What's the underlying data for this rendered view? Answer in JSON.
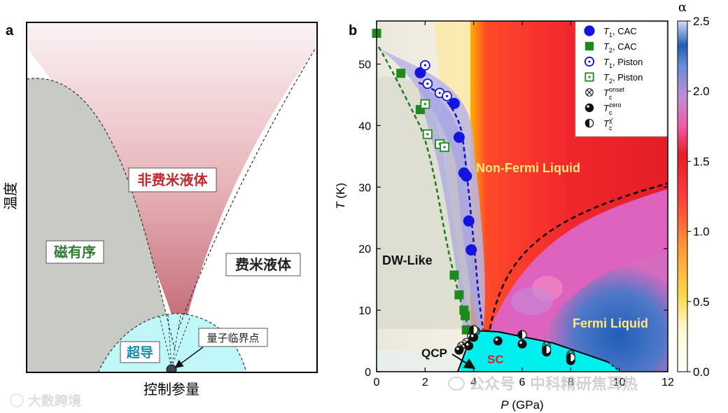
{
  "panel_a": {
    "label": "a",
    "ylabel": "温度",
    "xlabel": "控制参量",
    "regions": {
      "non_fermi": "非费米液体",
      "magnetic": "磁有序",
      "fermi": "费米液体",
      "superconducting": "超导",
      "qcp": "量子临界点"
    }
  },
  "chart_data": {
    "type": "scatter",
    "panel_label": "b",
    "xlabel": "P (GPa)",
    "xlabel_italic": "P",
    "xlabel_unit": " (GPa)",
    "ylabel": "T (K)",
    "ylabel_italic": "T",
    "ylabel_unit": " (K)",
    "xlim": [
      0,
      12
    ],
    "ylim": [
      0,
      57
    ],
    "xticks": [
      "0",
      "2",
      "4",
      "6",
      "8",
      "10",
      "12"
    ],
    "yticks": [
      "0",
      "10",
      "20",
      "30",
      "40",
      "50"
    ],
    "colorbar": {
      "label": "α",
      "range": [
        0,
        2.5
      ],
      "ticks": [
        "0.0",
        "0.5",
        "1.0",
        "1.5",
        "2.0",
        "2.5"
      ]
    },
    "region_labels": {
      "non_fermi": "Non-Fermi Liquid",
      "fermi": "Fermi Liquid",
      "dw": "DW-Like",
      "sc": "SC",
      "qcp": "QCP"
    },
    "legend": [
      {
        "sym": "T",
        "sub": "1",
        "text": ", CAC"
      },
      {
        "sym": "T",
        "sub": "2",
        "text": ", CAC"
      },
      {
        "sym": "T",
        "sub": "1",
        "text": ", Piston"
      },
      {
        "sym": "T",
        "sub": "2",
        "text": ", Piston"
      },
      {
        "sym": "T",
        "sub": "c",
        "sup": "onset"
      },
      {
        "sym": "T",
        "sub": "c",
        "sup": "zero"
      },
      {
        "sym": "T",
        "sub": "c",
        "sup": "χ'"
      }
    ],
    "series": [
      {
        "name": "T1, CAC",
        "points": [
          [
            1.8,
            48.6
          ],
          [
            3.2,
            43.6
          ],
          [
            3.4,
            38.1
          ],
          [
            3.6,
            32.3
          ],
          [
            3.7,
            31.8
          ],
          [
            3.8,
            24.5
          ],
          [
            3.9,
            19.8
          ]
        ]
      },
      {
        "name": "T2, CAC",
        "points": [
          [
            0.0,
            55.0
          ],
          [
            1.0,
            48.5
          ],
          [
            1.8,
            42.6
          ],
          [
            3.2,
            15.7
          ],
          [
            3.4,
            12.5
          ],
          [
            3.6,
            10.0
          ],
          [
            3.65,
            9.1
          ],
          [
            3.7,
            6.8
          ]
        ]
      },
      {
        "name": "T1, Piston",
        "points": [
          [
            2.0,
            49.8
          ],
          [
            2.1,
            46.8
          ],
          [
            2.6,
            45.3
          ],
          [
            2.9,
            44.8
          ]
        ]
      },
      {
        "name": "T2, Piston",
        "points": [
          [
            2.0,
            43.5
          ],
          [
            2.1,
            38.6
          ],
          [
            2.6,
            37.0
          ],
          [
            2.8,
            36.5
          ]
        ]
      },
      {
        "name": "Tc onset",
        "points": [
          [
            3.5,
            4.2
          ],
          [
            3.7,
            4.8
          ],
          [
            3.9,
            5.9
          ],
          [
            4.1,
            6.6
          ],
          [
            6.0,
            6.0
          ],
          [
            7.0,
            4.2
          ],
          [
            8.0,
            2.8
          ]
        ]
      },
      {
        "name": "Tc zero",
        "points": [
          [
            3.4,
            3.5
          ],
          [
            3.8,
            4.2
          ],
          [
            4.0,
            5.6
          ],
          [
            5.0,
            5.0
          ],
          [
            6.0,
            4.5
          ],
          [
            7.0,
            3.2
          ],
          [
            8.0,
            1.8
          ]
        ]
      },
      {
        "name": "Tc chi",
        "points": [
          [
            4.0,
            6.8
          ],
          [
            6.0,
            6.0
          ],
          [
            7.0,
            3.6
          ],
          [
            8.0,
            2.3
          ]
        ]
      }
    ]
  },
  "watermarks": {
    "left": "大数跨境",
    "right": "公众号 · 中科精研焦耳热"
  }
}
